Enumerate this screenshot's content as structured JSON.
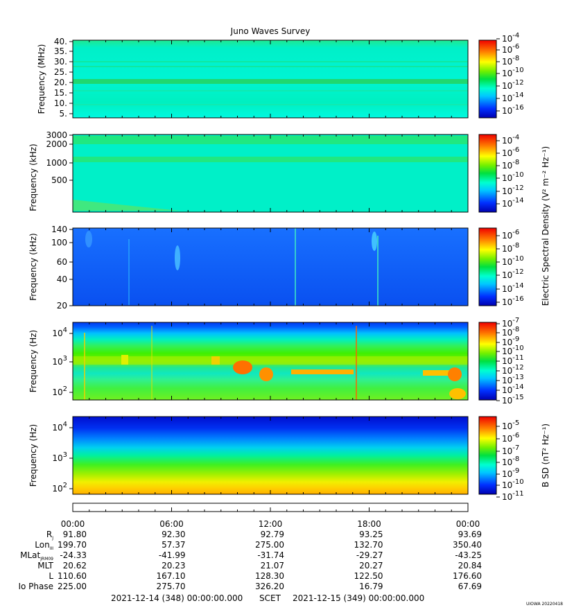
{
  "title": "Juno Waves Survey",
  "chart_data": [
    {
      "type": "heatmap",
      "ylabel": "Frequency (MHz)",
      "y_ticks": [
        "40.",
        "35.",
        "30.",
        "25.",
        "20.",
        "15.",
        "10.",
        "5."
      ],
      "colorbar_ticks": [
        "-4",
        "-6",
        "-8",
        "-10",
        "-12",
        "-14",
        "-16"
      ]
    },
    {
      "type": "heatmap",
      "ylabel": "Frequency (kHz)",
      "y_ticks": [
        "3000",
        "2000",
        "1000",
        "500"
      ],
      "colorbar_ticks": [
        "-4",
        "-6",
        "-8",
        "-10",
        "-12",
        "-14"
      ]
    },
    {
      "type": "heatmap",
      "ylabel": "Frequency (kHz)",
      "y_ticks": [
        "140",
        "100",
        "60",
        "40",
        "20"
      ],
      "colorbar_ticks": [
        "-6",
        "-8",
        "-10",
        "-12",
        "-14",
        "-16"
      ]
    },
    {
      "type": "heatmap",
      "ylabel": "Frequency (Hz)",
      "y_ticks": [
        "4",
        "3",
        "2"
      ],
      "colorbar_ticks": [
        "-7",
        "-8",
        "-9",
        "-10",
        "-11",
        "-12",
        "-13",
        "-14",
        "-15"
      ]
    },
    {
      "type": "heatmap",
      "ylabel": "Frequency (Hz)",
      "y_ticks": [
        "4",
        "3",
        "2"
      ],
      "colorbar_ticks": [
        "-5",
        "-6",
        "-7",
        "-8",
        "-9",
        "-10",
        "-11"
      ]
    }
  ],
  "colorbar_titles": {
    "electric": "Electric Spectral Density (V² m⁻² Hz⁻¹)",
    "magnetic": "B SD (nT² Hz⁻¹)"
  },
  "time_axis": [
    "00:00",
    "06:00",
    "12:00",
    "18:00",
    "00:00"
  ],
  "ephemeris_rows": [
    {
      "label": "R",
      "sub": "J",
      "values": [
        "91.80",
        "92.30",
        "92.79",
        "93.25",
        "93.69"
      ]
    },
    {
      "label": "Lon",
      "sub": "III",
      "values": [
        "199.70",
        "57.37",
        "275.00",
        "132.70",
        "350.40"
      ]
    },
    {
      "label": "MLat",
      "sub": "JRM09",
      "values": [
        "-24.33",
        "-41.99",
        "-31.74",
        "-29.27",
        "-43.25"
      ]
    },
    {
      "label": "MLT",
      "sub": "",
      "values": [
        "20.62",
        "20.23",
        "21.07",
        "20.27",
        "20.84"
      ]
    },
    {
      "label": "L",
      "sub": "",
      "values": [
        "110.60",
        "167.10",
        "128.30",
        "122.50",
        "176.60"
      ]
    },
    {
      "label": "Io Phase",
      "sub": "",
      "values": [
        "225.00",
        "275.70",
        "326.20",
        "16.79",
        "67.69"
      ]
    }
  ],
  "footer": {
    "start": "2021-12-14 (348) 00:00:00.000",
    "scet": "SCET",
    "end": "2021-12-15 (349) 00:00:00.000",
    "stamp": "UIOWA 20220418"
  }
}
